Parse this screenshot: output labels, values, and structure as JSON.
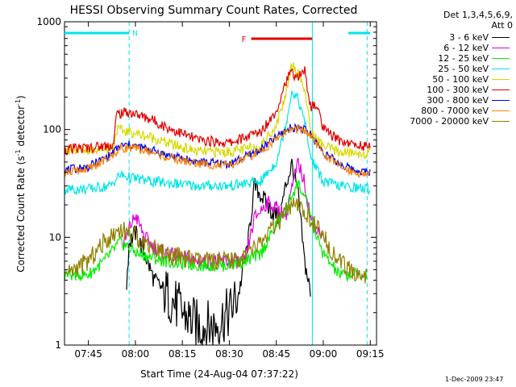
{
  "chart_data": {
    "type": "line",
    "title": "HESSI Observing Summary Count Rates, Corrected",
    "xlabel": "Start Time (24-Aug-04 07:37:22)",
    "ylabel": "Corrected Count Rate (s",
    "ylabel_exp1": "-1",
    "ylabel_mid": " detector",
    "ylabel_exp2": "-1",
    "ylabel_end": ")",
    "x_unit": "minutes after 07:37:22",
    "xlim": [
      "07:37:22",
      "09:17:00"
    ],
    "ylim": [
      1,
      1000
    ],
    "yscale": "log",
    "x_ticks": [
      "07:45",
      "08:00",
      "08:15",
      "08:30",
      "08:45",
      "09:00",
      "09:15"
    ],
    "y_ticks": [
      "1",
      "10",
      "100",
      "1000"
    ],
    "legend_header": [
      "Det 1,3,4,5,6,9,",
      "Att 0"
    ],
    "timestamp": "1-Dec-2009 23:47",
    "night_marker": {
      "label": "N",
      "color": "#00e5e5",
      "intervals": [
        [
          "07:37:22",
          "07:58:00"
        ],
        [
          "09:08:00",
          "09:15:00"
        ]
      ]
    },
    "flare_marker": {
      "label": "F",
      "color": "#e00000",
      "interval": [
        "08:37:00",
        "08:56:30"
      ]
    },
    "vlines": [
      {
        "time": "07:58:00",
        "style": "dashed",
        "color": "#00e5e5"
      },
      {
        "time": "08:56:30",
        "style": "solid",
        "color": "#00e5e5"
      },
      {
        "time": "09:14:00",
        "style": "dashed",
        "color": "#00e5e5"
      }
    ],
    "series": [
      {
        "name": "3 - 6 keV",
        "color": "#000000",
        "x": [
          "07:37:22",
          "07:50:00",
          "07:55:00",
          "07:57:00",
          "07:58:00",
          "08:00:00",
          "08:03:00",
          "08:06:00",
          "08:10:00",
          "08:15:00",
          "08:20:00",
          "08:25:00",
          "08:30:00",
          "08:33:00",
          "08:36:00",
          "08:38:00",
          "08:40:00",
          "08:43:00",
          "08:46:00",
          "08:48:00",
          "08:50:00",
          "08:52:00",
          "08:53:00",
          "08:54:00",
          "08:56:00"
        ],
        "y": [
          null,
          null,
          null,
          3,
          9,
          11,
          7,
          4,
          3,
          2,
          1.5,
          1.5,
          2,
          3,
          9,
          30,
          25,
          18,
          15,
          30,
          48,
          25,
          12,
          6,
          3
        ]
      },
      {
        "name": "6 - 12 keV",
        "color": "#e000e0",
        "x": [
          "07:37:22",
          "07:53:00",
          "07:56:00",
          "07:58:00",
          "08:00:00",
          "08:03:00",
          "08:06:00",
          "08:10:00",
          "08:20:00",
          "08:30:00",
          "08:35:00",
          "08:38:00",
          "08:42:00",
          "08:46:00",
          "08:48:00",
          "08:50:00",
          "08:52:00",
          "08:54:00",
          "08:56:00",
          "09:00:00"
        ],
        "y": [
          null,
          null,
          8,
          12,
          16,
          10,
          8,
          7,
          6,
          6,
          6,
          15,
          21,
          18,
          16,
          28,
          50,
          32,
          15,
          10
        ]
      },
      {
        "name": "12 - 25 keV",
        "color": "#00ee00",
        "x": [
          "07:37:22",
          "07:45:00",
          "07:50:00",
          "07:55:00",
          "07:58:00",
          "08:01:00",
          "08:05:00",
          "08:10:00",
          "08:20:00",
          "08:30:00",
          "08:35:00",
          "08:40:00",
          "08:45:00",
          "08:48:00",
          "08:50:00",
          "08:52:00",
          "08:55:00",
          "08:58:00",
          "09:00:00",
          "09:05:00",
          "09:10:00",
          "09:14:00"
        ],
        "y": [
          4.5,
          4.5,
          6,
          9,
          8,
          7,
          6.5,
          6,
          5.5,
          5.5,
          6,
          7,
          13,
          18,
          25,
          32,
          20,
          10,
          7,
          4.5,
          4.5,
          4.5
        ]
      },
      {
        "name": "25 - 50 keV",
        "color": "#00e5e5",
        "x": [
          "07:37:22",
          "07:45:00",
          "07:52:00",
          "07:55:00",
          "07:58:00",
          "08:05:00",
          "08:10:00",
          "08:20:00",
          "08:30:00",
          "08:40:00",
          "08:45:00",
          "08:48:00",
          "08:50:00",
          "08:52:00",
          "08:54:00",
          "08:56:00",
          "09:00:00",
          "09:05:00",
          "09:10:00",
          "09:15:00"
        ],
        "y": [
          28,
          28,
          30,
          38,
          36,
          33,
          32,
          30,
          30,
          33,
          50,
          110,
          230,
          190,
          120,
          55,
          33,
          30,
          29,
          28
        ]
      },
      {
        "name": "50 - 100 keV",
        "color": "#d8d800",
        "x": [
          "07:37:22",
          "07:45:00",
          "07:53:00",
          "07:54:00",
          "07:58:00",
          "08:05:00",
          "08:10:00",
          "08:20:00",
          "08:30:00",
          "08:40:00",
          "08:45:00",
          "08:48:00",
          "08:50:00",
          "08:52:00",
          "08:54:00",
          "08:55:00",
          "08:56:00",
          "09:00:00",
          "09:05:00",
          "09:10:00",
          "09:15:00"
        ],
        "y": [
          65,
          65,
          68,
          100,
          95,
          85,
          75,
          62,
          62,
          70,
          110,
          210,
          420,
          330,
          240,
          150,
          95,
          70,
          62,
          60,
          60
        ]
      },
      {
        "name": "100 - 300 keV",
        "color": "#e00000",
        "x": [
          "07:37:22",
          "07:45:00",
          "07:53:00",
          "07:54:00",
          "07:58:00",
          "08:05:00",
          "08:10:00",
          "08:20:00",
          "08:30:00",
          "08:40:00",
          "08:45:00",
          "08:48:00",
          "08:50:00",
          "08:52:00",
          "08:54:00",
          "08:56:00",
          "08:58:00",
          "09:00:00",
          "09:05:00",
          "09:10:00",
          "09:15:00"
        ],
        "y": [
          65,
          68,
          72,
          140,
          145,
          125,
          105,
          80,
          75,
          95,
          150,
          280,
          340,
          300,
          360,
          160,
          170,
          100,
          80,
          72,
          70
        ]
      },
      {
        "name": "300 - 800 keV",
        "color": "#0000e0",
        "x": [
          "07:37:22",
          "07:45:00",
          "07:52:00",
          "07:55:00",
          "07:58:00",
          "08:05:00",
          "08:10:00",
          "08:20:00",
          "08:30:00",
          "08:40:00",
          "08:45:00",
          "08:48:00",
          "08:50:00",
          "08:52:00",
          "08:54:00",
          "08:56:00",
          "09:00:00",
          "09:05:00",
          "09:10:00",
          "09:15:00"
        ],
        "y": [
          42,
          45,
          58,
          70,
          72,
          65,
          58,
          50,
          48,
          65,
          85,
          98,
          104,
          104,
          100,
          90,
          62,
          48,
          42,
          40
        ]
      },
      {
        "name": "800 - 7000 keV",
        "color": "#ff8000",
        "x": [
          "07:37:22",
          "07:45:00",
          "07:52:00",
          "07:55:00",
          "07:58:00",
          "08:05:00",
          "08:10:00",
          "08:20:00",
          "08:30:00",
          "08:40:00",
          "08:45:00",
          "08:48:00",
          "08:50:00",
          "08:52:00",
          "08:54:00",
          "08:56:00",
          "09:00:00",
          "09:05:00",
          "09:10:00",
          "09:15:00"
        ],
        "y": [
          40,
          43,
          55,
          66,
          68,
          62,
          55,
          48,
          46,
          62,
          82,
          95,
          100,
          100,
          97,
          87,
          60,
          46,
          40,
          38
        ]
      },
      {
        "name": "7000 - 20000 keV",
        "color": "#908000",
        "x": [
          "07:37:22",
          "07:45:00",
          "07:50:00",
          "07:55:00",
          "07:58:00",
          "08:03:00",
          "08:10:00",
          "08:20:00",
          "08:30:00",
          "08:35:00",
          "08:40:00",
          "08:45:00",
          "08:48:00",
          "08:50:00",
          "08:52:00",
          "08:55:00",
          "09:00:00",
          "09:05:00",
          "09:10:00",
          "09:14:00"
        ],
        "y": [
          4.5,
          6,
          9,
          12,
          11,
          9,
          7,
          6,
          6,
          6.5,
          9,
          13,
          17,
          19,
          19,
          16,
          10,
          6,
          4.5,
          4.5
        ]
      }
    ]
  }
}
